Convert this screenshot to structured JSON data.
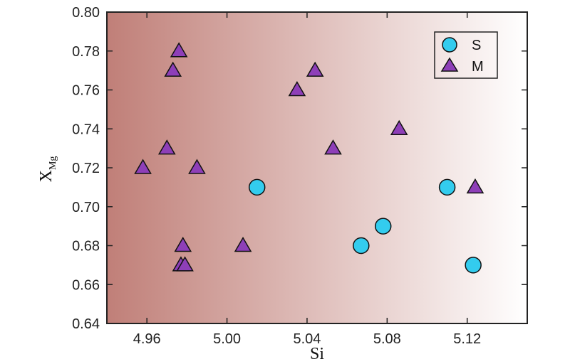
{
  "chart_data": {
    "type": "scatter",
    "xlabel": "Si",
    "ylabel_main": "X",
    "ylabel_sub": "Mg",
    "xlim": [
      4.94,
      5.15
    ],
    "ylim": [
      0.64,
      0.8
    ],
    "xticks": [
      4.96,
      5.0,
      5.04,
      5.08,
      5.12
    ],
    "yticks": [
      0.64,
      0.66,
      0.68,
      0.7,
      0.72,
      0.74,
      0.76,
      0.78,
      0.8
    ],
    "xtick_labels": [
      "4.96",
      "5.00",
      "5.04",
      "5.08",
      "5.12"
    ],
    "ytick_labels": [
      "0.64",
      "0.66",
      "0.68",
      "0.70",
      "0.72",
      "0.74",
      "0.76",
      "0.78",
      "0.80"
    ],
    "grid": false,
    "legend_position": "top-right",
    "background": "horizontal gradient from reddish-brown (left) to white (right)",
    "series": [
      {
        "name": "S",
        "marker": "circle",
        "color": "#33ccee",
        "points": [
          {
            "x": 5.015,
            "y": 0.71
          },
          {
            "x": 5.067,
            "y": 0.68
          },
          {
            "x": 5.078,
            "y": 0.69
          },
          {
            "x": 5.11,
            "y": 0.71
          },
          {
            "x": 5.123,
            "y": 0.67
          }
        ]
      },
      {
        "name": "M",
        "marker": "triangle",
        "color": "#8e3fb8",
        "points": [
          {
            "x": 4.958,
            "y": 0.72
          },
          {
            "x": 4.97,
            "y": 0.73
          },
          {
            "x": 4.973,
            "y": 0.77
          },
          {
            "x": 4.976,
            "y": 0.78
          },
          {
            "x": 4.977,
            "y": 0.67
          },
          {
            "x": 4.978,
            "y": 0.68
          },
          {
            "x": 4.979,
            "y": 0.67
          },
          {
            "x": 4.985,
            "y": 0.72
          },
          {
            "x": 5.008,
            "y": 0.68
          },
          {
            "x": 5.035,
            "y": 0.76
          },
          {
            "x": 5.044,
            "y": 0.77
          },
          {
            "x": 5.053,
            "y": 0.73
          },
          {
            "x": 5.086,
            "y": 0.74
          },
          {
            "x": 5.124,
            "y": 0.71
          }
        ]
      }
    ]
  },
  "colors": {
    "bg_left": "#c07f78",
    "bg_right": "#ffffff",
    "axis": "#222222"
  }
}
